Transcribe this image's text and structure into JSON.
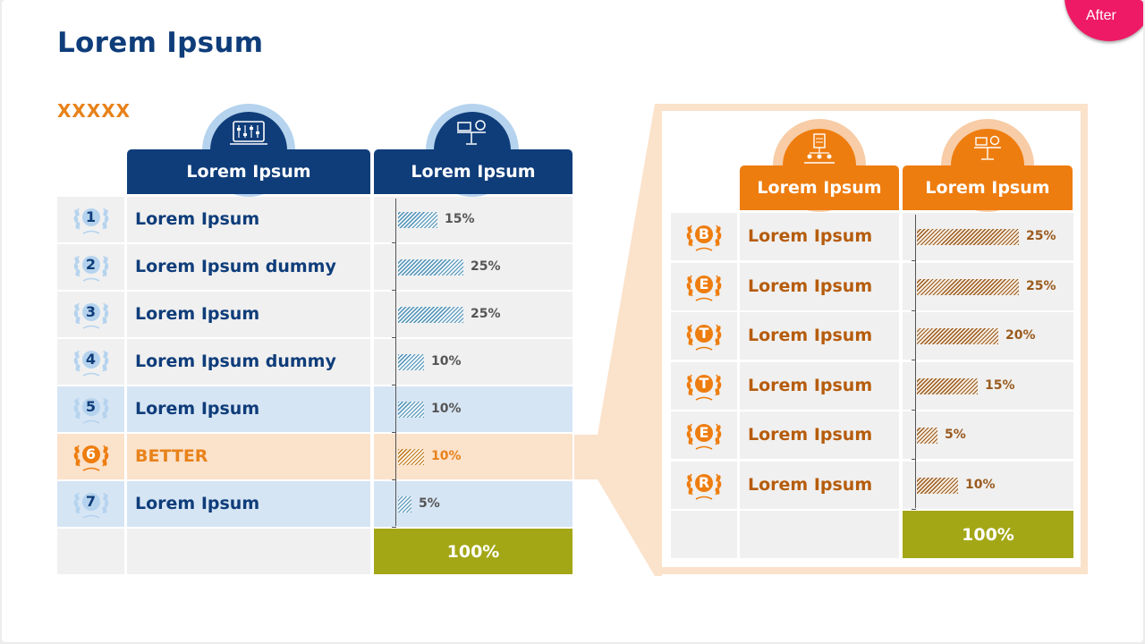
{
  "slide": {
    "title": "Lorem Ipsum",
    "subtitle": "XXXXX",
    "badge": "After"
  },
  "left_table": {
    "col1_header": "Lorem Ipsum",
    "col2_header": "Lorem Ipsum",
    "col1_icon": "control-panel-icon",
    "col2_icon": "scale-icon",
    "rows": [
      {
        "rank": "1",
        "label": "Lorem Ipsum",
        "percent_label": "15%",
        "value": 15,
        "style": "normal"
      },
      {
        "rank": "2",
        "label": "Lorem Ipsum dummy",
        "percent_label": "25%",
        "value": 25,
        "style": "normal"
      },
      {
        "rank": "3",
        "label": "Lorem Ipsum",
        "percent_label": "25%",
        "value": 25,
        "style": "normal"
      },
      {
        "rank": "4",
        "label": "Lorem Ipsum dummy",
        "percent_label": "10%",
        "value": 10,
        "style": "normal"
      },
      {
        "rank": "5",
        "label": "Lorem Ipsum",
        "percent_label": "10%",
        "value": 10,
        "style": "highlight-blue"
      },
      {
        "rank": "6",
        "label": "BETTER",
        "percent_label": "10%",
        "value": 10,
        "style": "highlight-orange"
      },
      {
        "rank": "7",
        "label": "Lorem Ipsum",
        "percent_label": "5%",
        "value": 5,
        "style": "highlight-blue"
      }
    ],
    "total": "100%"
  },
  "right_table": {
    "col1_header": "Lorem Ipsum",
    "col2_header": "Lorem Ipsum",
    "col1_icon": "network-document-icon",
    "col2_icon": "scale-icon",
    "rows": [
      {
        "letter": "B",
        "label": "Lorem Ipsum",
        "percent_label": "25%",
        "value": 25
      },
      {
        "letter": "E",
        "label": "Lorem Ipsum",
        "percent_label": "25%",
        "value": 25
      },
      {
        "letter": "T",
        "label": "Lorem Ipsum",
        "percent_label": "20%",
        "value": 20
      },
      {
        "letter": "T",
        "label": "Lorem Ipsum",
        "percent_label": "15%",
        "value": 15
      },
      {
        "letter": "E",
        "label": "Lorem Ipsum",
        "percent_label": "5%",
        "value": 5
      },
      {
        "letter": "R",
        "label": "Lorem Ipsum",
        "percent_label": "10%",
        "value": 10
      }
    ],
    "total": "100%"
  },
  "colors": {
    "navy": "#0f3d7a",
    "orange": "#ee7d0f",
    "olive": "#a3a716",
    "light_blue": "#d6e5f4",
    "light_orange": "#fbe2cb",
    "badge_pink": "#ee1a65"
  }
}
